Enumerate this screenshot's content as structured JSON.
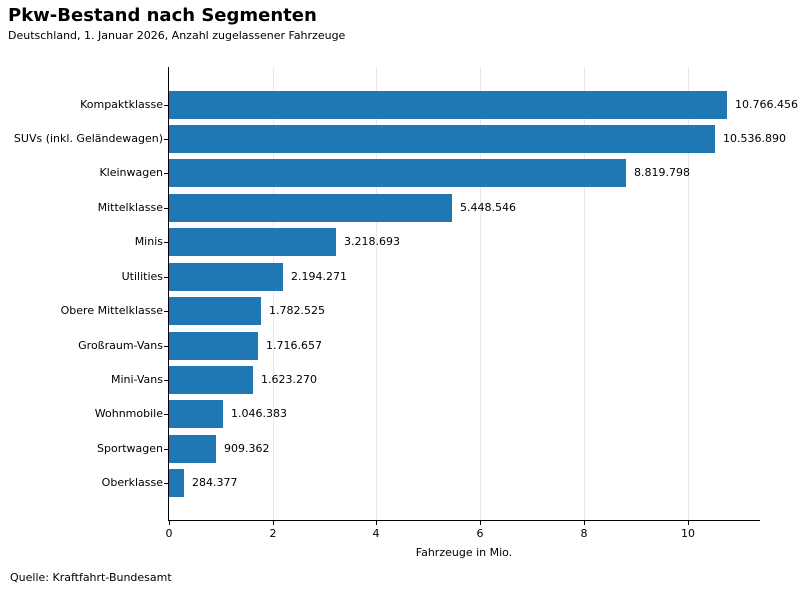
{
  "header": {
    "title": "Pkw-Bestand nach Segmenten",
    "subtitle": "Deutschland, 1. Januar 2026, Anzahl zugelassener Fahrzeuge"
  },
  "footer": {
    "source": "Quelle: Kraftfahrt-Bundesamt"
  },
  "chart_data": {
    "type": "bar",
    "orientation": "horizontal",
    "title": "Pkw-Bestand nach Segmenten",
    "subtitle": "Deutschland, 1. Januar 2026, Anzahl zugelassener Fahrzeuge",
    "xlabel": "Fahrzeuge in Mio.",
    "xlim": [
      0,
      11.38
    ],
    "xticks": [
      0,
      2,
      4,
      6,
      8,
      10
    ],
    "grid": "vertical-light",
    "legend": "none",
    "bar_color": "#1f77b4",
    "grid_color": "#e8e8e8",
    "categories": [
      "Kompaktklasse",
      "SUVs (inkl. Geländewagen)",
      "Kleinwagen",
      "Mittelklasse",
      "Minis",
      "Utilities",
      "Obere Mittelklasse",
      "Großraum-Vans",
      "Mini-Vans",
      "Wohnmobile",
      "Sportwagen",
      "Oberklasse"
    ],
    "values": [
      10766456,
      10536890,
      8819798,
      5448546,
      3218693,
      2194271,
      1782525,
      1716657,
      1623270,
      1046383,
      909362,
      284377
    ],
    "value_labels": [
      "10.766.456",
      "10.536.890",
      "8.819.798",
      "5.448.546",
      "3.218.693",
      "2.194.271",
      "1.782.525",
      "1.716.657",
      "1.623.270",
      "1.046.383",
      "909.362",
      "284.377"
    ],
    "source": "Quelle: Kraftfahrt-Bundesamt"
  }
}
